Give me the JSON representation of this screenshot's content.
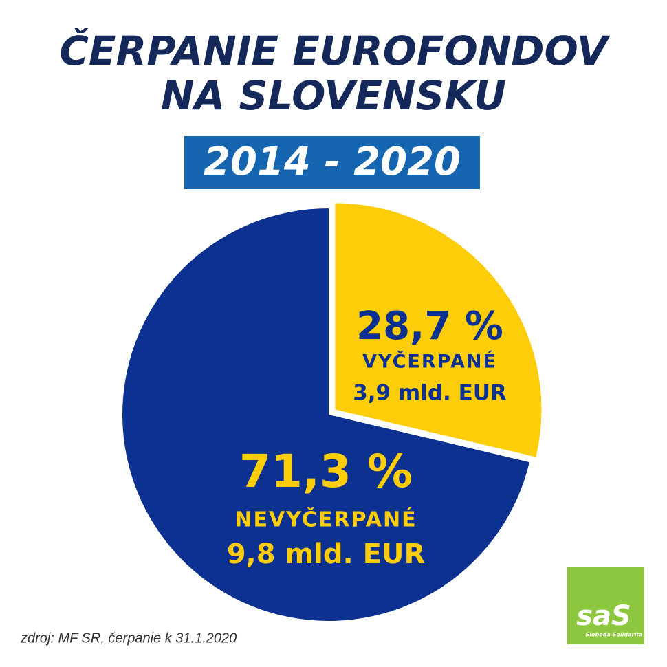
{
  "chart_data": {
    "type": "pie",
    "title": [
      "ČERPANIE EUROFONDOV",
      "NA SLOVENSKU"
    ],
    "subtitle": "2014 - 2020",
    "categories": [
      "VYČERPANÉ",
      "NEVYČERPANÉ"
    ],
    "values": [
      28.7,
      71.3
    ],
    "value_labels": [
      "28,7 %",
      "71,3 %"
    ],
    "details": [
      "3,9 mld. EUR",
      "9,8 mld. EUR"
    ],
    "colors": [
      "#fecd0a",
      "#0c3191"
    ],
    "source": "zdroj: MF SR, čerpanie k 31.1.2020",
    "logo": {
      "text": "saS",
      "caption": "Sloboda Solidarita"
    }
  }
}
